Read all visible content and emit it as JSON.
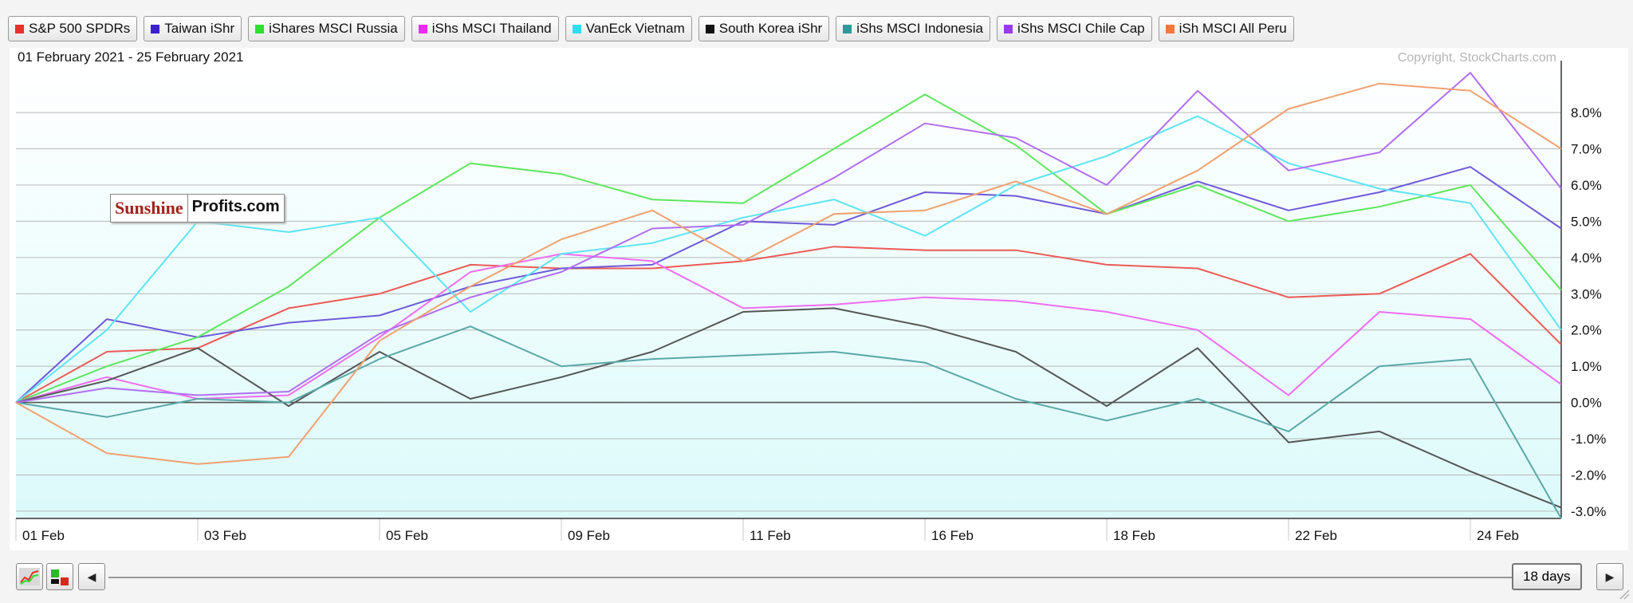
{
  "legend": [
    {
      "label": "S&P 500 SPDRs",
      "color": "#e8312b"
    },
    {
      "label": "Taiwan iShr",
      "color": "#3a1fcf"
    },
    {
      "label": "iShares MSCI Russia",
      "color": "#2de02d"
    },
    {
      "label": "iShs MSCI Thailand",
      "color": "#f02cf0"
    },
    {
      "label": "VanEck Vietnam",
      "color": "#2fdcf2"
    },
    {
      "label": "South Korea iShr",
      "color": "#111111"
    },
    {
      "label": "iShs MSCI Indonesia",
      "color": "#2a9a9a"
    },
    {
      "label": "iShs MSCI Chile Cap",
      "color": "#9a3af0"
    },
    {
      "label": "iSh MSCI All Peru",
      "color": "#f0783a"
    }
  ],
  "date_range": "01 February 2021 - 25 February 2021",
  "copyright": "Copyright, StockCharts.com",
  "logo": {
    "part1": "Sunshine",
    "part2": "Profits.com"
  },
  "controls": {
    "days": "18 days",
    "prev_glyph": "◀",
    "next_glyph": "▶"
  },
  "chart_data": {
    "type": "line",
    "title": "",
    "xlabel": "",
    "ylabel": "",
    "ylim": [
      -3.2,
      9.3
    ],
    "yticks": [
      -3,
      -2,
      -1,
      0,
      1,
      2,
      3,
      4,
      5,
      6,
      7,
      8
    ],
    "ytick_labels": [
      "-3.0%",
      "-2.0%",
      "-1.0%",
      "0.0%",
      "1.0%",
      "2.0%",
      "3.0%",
      "4.0%",
      "5.0%",
      "6.0%",
      "7.0%",
      "8.0%"
    ],
    "x": [
      "01 Feb",
      "02 Feb",
      "03 Feb",
      "04 Feb",
      "05 Feb",
      "08 Feb",
      "09 Feb",
      "10 Feb",
      "11 Feb",
      "12 Feb",
      "16 Feb",
      "17 Feb",
      "18 Feb",
      "19 Feb",
      "22 Feb",
      "23 Feb",
      "24 Feb",
      "25 Feb"
    ],
    "xtick_labels": [
      "01 Feb",
      "03 Feb",
      "05 Feb",
      "09 Feb",
      "11 Feb",
      "16 Feb",
      "18 Feb",
      "22 Feb",
      "24 Feb"
    ],
    "xtick_indices": [
      0,
      2,
      4,
      6,
      8,
      10,
      12,
      14,
      16
    ],
    "grid": true,
    "series": [
      {
        "name": "S&P 500 SPDRs",
        "color": "#ec5a55",
        "values": [
          0.0,
          1.4,
          1.5,
          2.6,
          3.0,
          3.8,
          3.7,
          3.7,
          3.9,
          4.3,
          4.2,
          4.2,
          3.8,
          3.7,
          2.9,
          3.0,
          4.1,
          1.6
        ]
      },
      {
        "name": "Taiwan iShr",
        "color": "#6e5ad8",
        "values": [
          0.0,
          2.3,
          1.8,
          2.2,
          2.4,
          3.2,
          3.7,
          3.8,
          5.0,
          4.9,
          5.8,
          5.7,
          5.2,
          6.1,
          5.3,
          5.8,
          6.5,
          4.8
        ]
      },
      {
        "name": "iShares MSCI Russia",
        "color": "#5ee65e",
        "values": [
          0.0,
          1.0,
          1.8,
          3.2,
          5.1,
          6.6,
          6.3,
          5.6,
          5.5,
          7.0,
          8.5,
          7.1,
          5.2,
          6.0,
          5.0,
          5.4,
          6.0,
          3.1
        ]
      },
      {
        "name": "iShs MSCI Thailand",
        "color": "#f06cf0",
        "values": [
          0.0,
          0.7,
          0.1,
          0.2,
          1.8,
          3.6,
          4.1,
          3.9,
          2.6,
          2.7,
          2.9,
          2.8,
          2.5,
          2.0,
          0.2,
          2.5,
          2.3,
          0.5
        ]
      },
      {
        "name": "VanEck Vietnam",
        "color": "#5ee4f4",
        "values": [
          0.0,
          2.0,
          5.0,
          4.7,
          5.1,
          2.5,
          4.1,
          4.4,
          5.1,
          5.6,
          4.6,
          6.0,
          6.8,
          7.9,
          6.6,
          5.9,
          5.5,
          2.0
        ]
      },
      {
        "name": "South Korea iShr",
        "color": "#555555",
        "values": [
          0.0,
          0.6,
          1.5,
          -0.1,
          1.4,
          0.1,
          0.7,
          1.4,
          2.5,
          2.6,
          2.1,
          1.4,
          -0.1,
          1.5,
          -1.1,
          -0.8,
          -1.9,
          -2.9
        ]
      },
      {
        "name": "iShs MSCI Indonesia",
        "color": "#5aa8a8",
        "values": [
          0.0,
          -0.4,
          0.1,
          0.0,
          1.2,
          2.1,
          1.0,
          1.2,
          1.3,
          1.4,
          1.1,
          0.1,
          -0.5,
          0.1,
          -0.8,
          1.0,
          1.2,
          -3.2
        ]
      },
      {
        "name": "iShs MSCI Chile Cap",
        "color": "#b06ef0",
        "values": [
          0.0,
          0.4,
          0.2,
          0.3,
          1.9,
          2.9,
          3.6,
          4.8,
          4.9,
          6.2,
          7.7,
          7.3,
          6.0,
          8.6,
          6.4,
          6.9,
          9.1,
          5.9
        ]
      },
      {
        "name": "iSh MSCI All Peru",
        "color": "#f0a070",
        "values": [
          0.0,
          -1.4,
          -1.7,
          -1.5,
          1.7,
          3.2,
          4.5,
          5.3,
          3.9,
          5.2,
          5.3,
          6.1,
          5.2,
          6.4,
          8.1,
          8.8,
          8.6,
          7.0
        ]
      }
    ]
  }
}
